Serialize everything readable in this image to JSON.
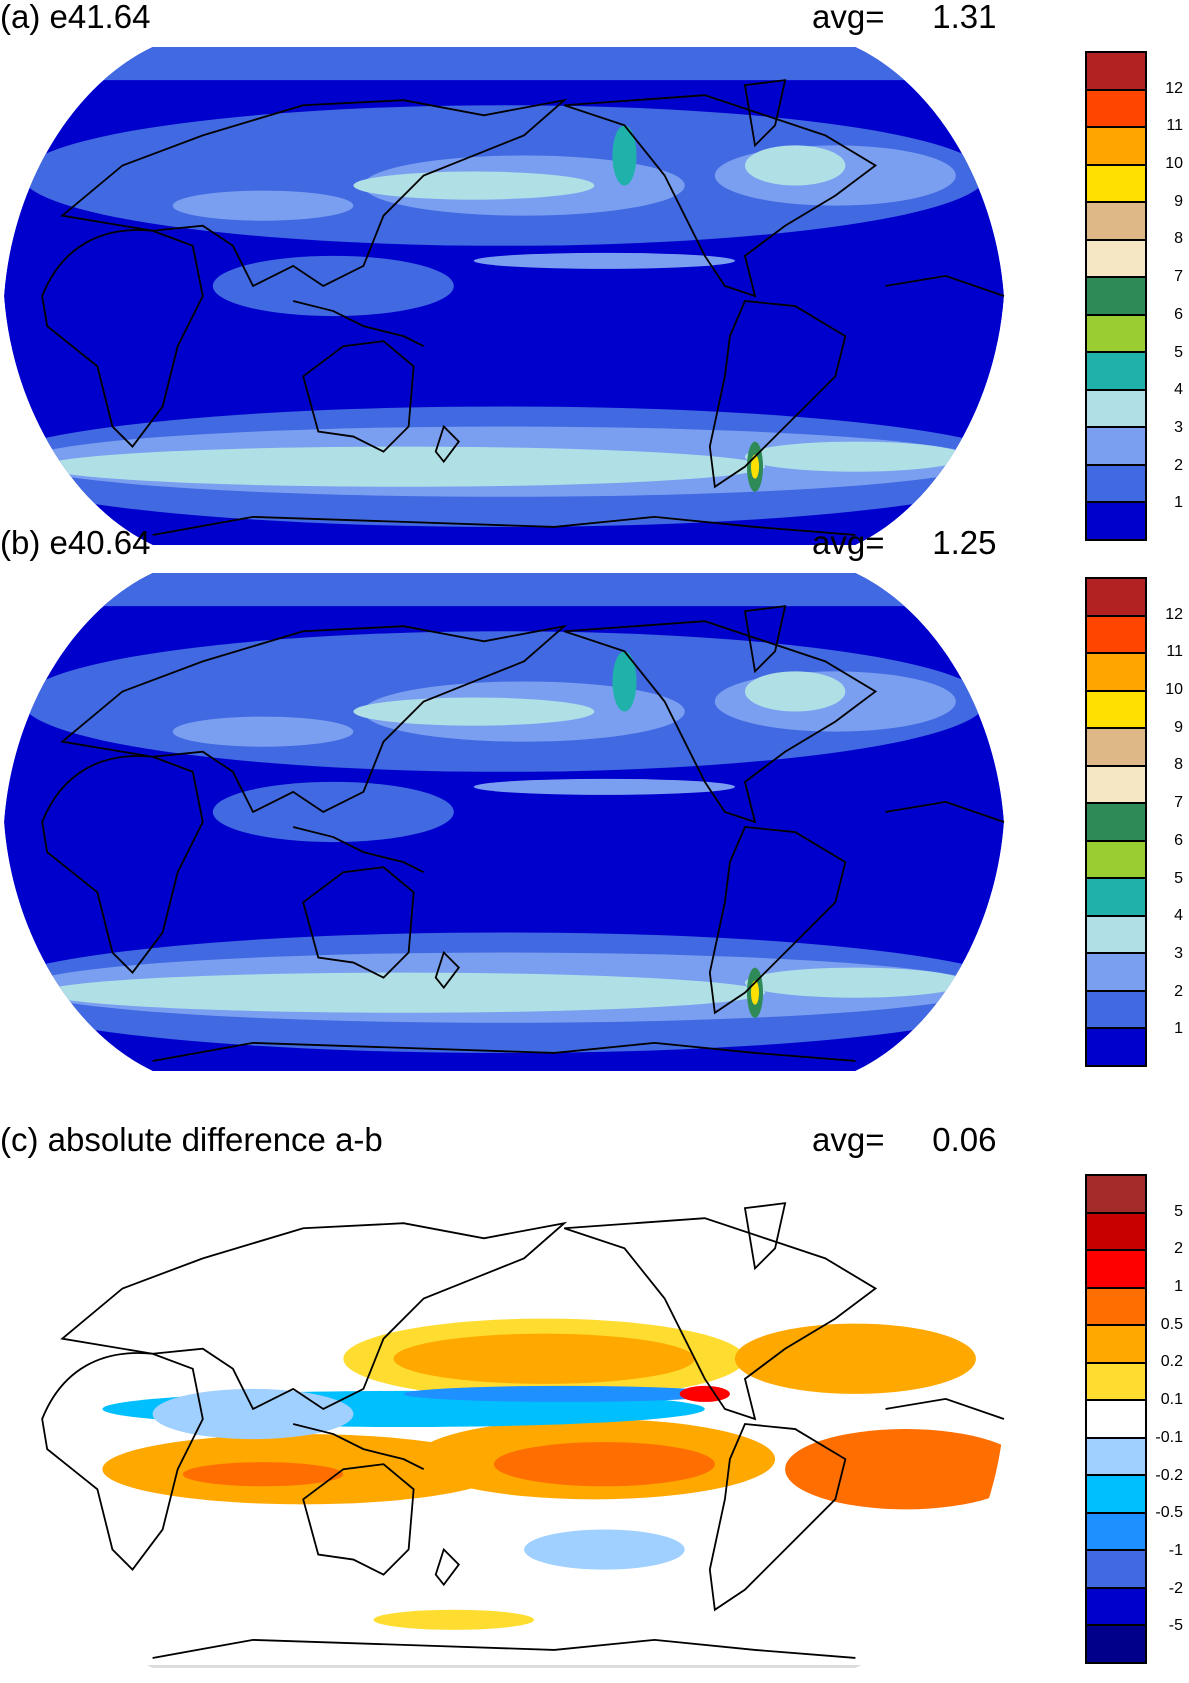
{
  "chart_data": [
    {
      "type": "heatmap",
      "title": "(a) e41.64",
      "avg_label": "avg=",
      "avg_value": "1.31",
      "colorbar": {
        "levels": [
          "12",
          "11",
          "10",
          "9",
          "8",
          "7",
          "6",
          "5",
          "4",
          "3",
          "2",
          "1"
        ],
        "colors": [
          "#B22222",
          "#FF4500",
          "#FFA500",
          "#FFE000",
          "#DEB887",
          "#F5E6C4",
          "#2E8B57",
          "#9ACD32",
          "#20B2AA",
          "#B0E0E6",
          "#7B9FF0",
          "#4169E1",
          "#0000CD"
        ]
      }
    },
    {
      "type": "heatmap",
      "title": "(b) e40.64",
      "avg_label": "avg=",
      "avg_value": "1.25",
      "colorbar": {
        "levels": [
          "12",
          "11",
          "10",
          "9",
          "8",
          "7",
          "6",
          "5",
          "4",
          "3",
          "2",
          "1"
        ],
        "colors": [
          "#B22222",
          "#FF4500",
          "#FFA500",
          "#FFE000",
          "#DEB887",
          "#F5E6C4",
          "#2E8B57",
          "#9ACD32",
          "#20B2AA",
          "#B0E0E6",
          "#7B9FF0",
          "#4169E1",
          "#0000CD"
        ]
      }
    },
    {
      "type": "heatmap",
      "title": "(c) absolute difference a-b",
      "avg_label": "avg=",
      "avg_value": "0.06",
      "colorbar": {
        "levels": [
          "5",
          "2",
          "1",
          "0.5",
          "0.2",
          "0.1",
          "-0.1",
          "-0.2",
          "-0.5",
          "-1",
          "-2",
          "-5"
        ],
        "colors": [
          "#A52A2A",
          "#C80000",
          "#FF0000",
          "#FF6E00",
          "#FFA800",
          "#FFDD30",
          "#FFFFFF",
          "#A0D0FF",
          "#00BFFF",
          "#1E90FF",
          "#4169E1",
          "#0000CD",
          "#00008B"
        ]
      }
    }
  ]
}
